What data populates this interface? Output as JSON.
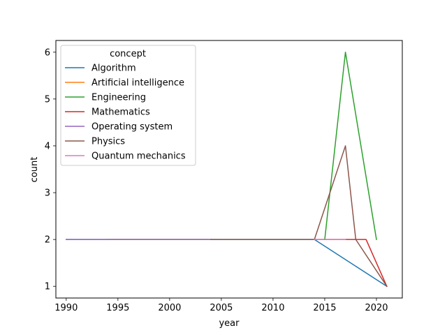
{
  "chart_data": {
    "type": "line",
    "title": "",
    "xlabel": "year",
    "ylabel": "count",
    "xlim": [
      1989,
      2022.5
    ],
    "ylim": [
      0.75,
      6.25
    ],
    "xticks": [
      1990,
      1995,
      2000,
      2005,
      2010,
      2015,
      2020
    ],
    "yticks": [
      1,
      2,
      3,
      4,
      5,
      6
    ],
    "grid": false,
    "legend": {
      "title": "concept",
      "placement": "top-left"
    },
    "series": [
      {
        "name": "Algorithm",
        "color": "#1f77b4",
        "x": [
          1990,
          2014,
          2021
        ],
        "y": [
          2,
          2,
          1
        ]
      },
      {
        "name": "Artificial intelligence",
        "color": "#ff7f0e",
        "x": [
          1994,
          2004
        ],
        "y": [
          2,
          2
        ]
      },
      {
        "name": "Engineering",
        "color": "#2ca02c",
        "x": [
          2015,
          2017,
          2020
        ],
        "y": [
          2,
          6,
          2
        ]
      },
      {
        "name": "Mathematics",
        "color": "#d62728",
        "x": [
          2014,
          2019,
          2021
        ],
        "y": [
          2,
          2,
          1
        ]
      },
      {
        "name": "Operating system",
        "color": "#9467bd",
        "x": [
          1990,
          2004
        ],
        "y": [
          2,
          2
        ]
      },
      {
        "name": "Physics",
        "color": "#8c564b",
        "x": [
          2004,
          2014,
          2017,
          2018,
          2021
        ],
        "y": [
          2,
          2,
          4,
          2,
          1
        ]
      },
      {
        "name": "Quantum mechanics",
        "color": "#e377c2",
        "x": [
          2014,
          2017
        ],
        "y": [
          2,
          2
        ]
      }
    ]
  }
}
